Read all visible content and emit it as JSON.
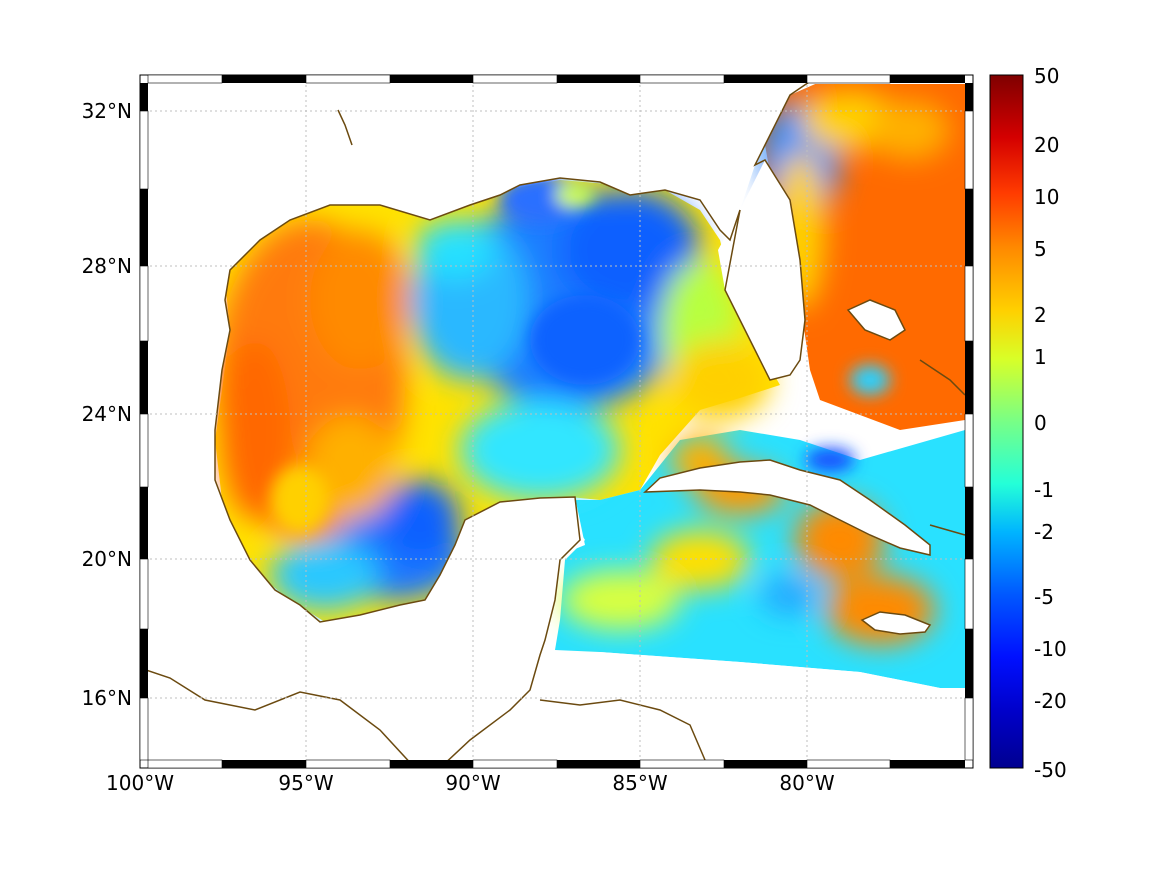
{
  "map": {
    "lat_labels": [
      "32°N",
      "28°N",
      "24°N",
      "20°N",
      "16°N"
    ],
    "lon_labels": [
      "100°W",
      "95°W",
      "90°W",
      "85°W",
      "80°W"
    ]
  },
  "colorbar": {
    "ticks": [
      "50",
      "20",
      "10",
      "5",
      "2",
      "1",
      "0",
      "-1",
      "-2",
      "-5",
      "-10",
      "-20",
      "-50"
    ],
    "colors": [
      "#7f0000",
      "#d40000",
      "#ff3b00",
      "#ff8a00",
      "#ffd000",
      "#d8ff28",
      "#78ff86",
      "#24ffd8",
      "#00b4ff",
      "#0058ff",
      "#0000e8",
      "#000090"
    ]
  },
  "colors": {
    "coastline": "#6b4a10",
    "gulf_west": "#ff7a10",
    "gulf_center": "#1e7dff",
    "atlantic": "#ff6a00",
    "caribbean": "#29e1ff"
  }
}
